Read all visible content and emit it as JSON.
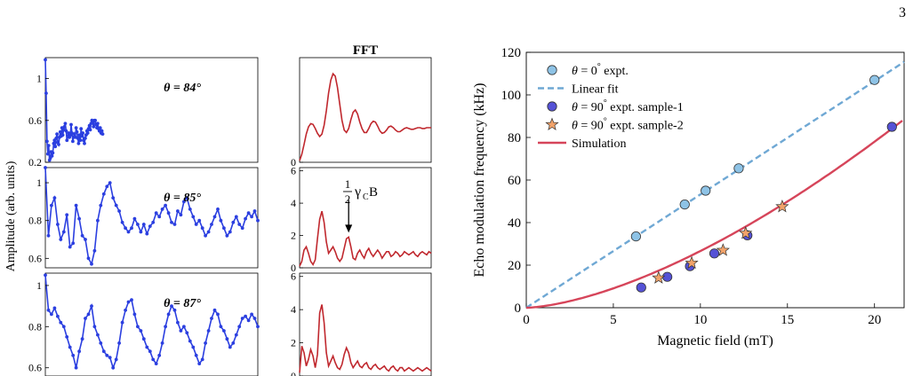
{
  "page_number": "3",
  "chart_data": [
    {
      "type": "line",
      "panel": "left",
      "ylabel": "Amplitude (arb. units)",
      "subplots": [
        {
          "label": "θ = 84°",
          "ylim": [
            0.2,
            1.2
          ],
          "yticks": [
            "0.2",
            "0.6",
            "1"
          ],
          "ytick_values": [
            0.2,
            0.6,
            1.0
          ],
          "series_color": "#2b3fe0",
          "x": [
            0,
            1,
            2,
            3,
            4,
            5,
            6,
            7,
            8,
            9,
            10,
            11,
            12,
            13,
            14,
            15,
            16,
            17,
            18,
            19,
            20,
            21,
            22,
            23,
            24,
            25,
            26,
            27,
            28,
            29,
            30,
            31,
            32,
            33,
            34,
            35,
            36,
            37,
            38,
            39,
            40,
            41,
            42,
            43,
            44,
            45,
            46,
            47,
            48,
            49,
            50,
            51,
            52,
            53,
            54,
            55,
            56,
            57,
            58,
            59,
            60,
            61,
            62,
            63,
            64,
            65,
            66,
            67,
            68,
            69
          ],
          "y": [
            1.18,
            0.86,
            0.4,
            0.28,
            0.36,
            0.22,
            0.24,
            0.3,
            0.26,
            0.29,
            0.38,
            0.41,
            0.35,
            0.43,
            0.47,
            0.39,
            0.37,
            0.44,
            0.49,
            0.45,
            0.53,
            0.46,
            0.51,
            0.54,
            0.57,
            0.5,
            0.41,
            0.45,
            0.48,
            0.44,
            0.46,
            0.56,
            0.48,
            0.4,
            0.44,
            0.47,
            0.44,
            0.53,
            0.49,
            0.43,
            0.38,
            0.46,
            0.41,
            0.52,
            0.45,
            0.48,
            0.41,
            0.38,
            0.43,
            0.46,
            0.5,
            0.48,
            0.52,
            0.55,
            0.51,
            0.57,
            0.6,
            0.58,
            0.54,
            0.6,
            0.6,
            0.56,
            0.53,
            0.57,
            0.52,
            0.5,
            0.53,
            0.48,
            0.5,
            0.47
          ]
        },
        {
          "label": "θ = 85°",
          "ylim": [
            0.55,
            1.08
          ],
          "yticks": [
            "0.6",
            "0.8",
            "1"
          ],
          "ytick_values": [
            0.6,
            0.8,
            1.0
          ],
          "series_color": "#2b3fe0",
          "x": [
            0,
            1,
            2,
            3,
            4,
            5,
            6,
            7,
            8,
            9,
            10,
            11,
            12,
            13,
            14,
            15,
            16,
            17,
            18,
            19,
            20,
            21,
            22,
            23,
            24,
            25,
            26,
            27,
            28,
            29,
            30,
            31,
            32,
            33,
            34,
            35,
            36,
            37,
            38,
            39,
            40,
            41,
            42,
            43,
            44,
            45,
            46,
            47,
            48,
            49,
            50,
            51,
            52,
            53,
            54,
            55,
            56,
            57,
            58,
            59,
            60,
            61,
            62,
            63,
            64,
            65,
            66,
            67,
            68,
            69
          ],
          "y": [
            1.08,
            0.72,
            0.88,
            0.92,
            0.78,
            0.7,
            0.74,
            0.83,
            0.66,
            0.68,
            0.88,
            0.81,
            0.72,
            0.7,
            0.6,
            0.57,
            0.64,
            0.8,
            0.88,
            0.94,
            0.98,
            1.0,
            0.92,
            0.88,
            0.85,
            0.79,
            0.76,
            0.74,
            0.76,
            0.81,
            0.78,
            0.74,
            0.78,
            0.73,
            0.77,
            0.79,
            0.84,
            0.82,
            0.86,
            0.88,
            0.84,
            0.79,
            0.78,
            0.85,
            0.83,
            0.9,
            0.92,
            0.86,
            0.82,
            0.78,
            0.8,
            0.76,
            0.72,
            0.74,
            0.78,
            0.82,
            0.86,
            0.8,
            0.76,
            0.72,
            0.74,
            0.79,
            0.82,
            0.78,
            0.76,
            0.81,
            0.84,
            0.82,
            0.85,
            0.8
          ]
        },
        {
          "label": "θ = 87°",
          "ylim": [
            0.56,
            1.06
          ],
          "yticks": [
            "0.6",
            "0.8",
            "1"
          ],
          "ytick_values": [
            0.6,
            0.8,
            1.0
          ],
          "series_color": "#2b3fe0",
          "x": [
            0,
            1,
            2,
            3,
            4,
            5,
            6,
            7,
            8,
            9,
            10,
            11,
            12,
            13,
            14,
            15,
            16,
            17,
            18,
            19,
            20,
            21,
            22,
            23,
            24,
            25,
            26,
            27,
            28,
            29,
            30,
            31,
            32,
            33,
            34,
            35,
            36,
            37,
            38,
            39,
            40,
            41,
            42,
            43,
            44,
            45,
            46,
            47,
            48,
            49,
            50,
            51,
            52,
            53,
            54,
            55,
            56,
            57,
            58,
            59,
            60,
            61,
            62,
            63,
            64,
            65,
            66,
            67,
            68,
            69
          ],
          "y": [
            1.05,
            0.88,
            0.86,
            0.89,
            0.85,
            0.82,
            0.8,
            0.75,
            0.7,
            0.66,
            0.6,
            0.68,
            0.74,
            0.84,
            0.86,
            0.9,
            0.8,
            0.76,
            0.72,
            0.68,
            0.66,
            0.65,
            0.6,
            0.64,
            0.72,
            0.82,
            0.88,
            0.92,
            0.93,
            0.86,
            0.8,
            0.78,
            0.74,
            0.7,
            0.68,
            0.64,
            0.62,
            0.66,
            0.72,
            0.8,
            0.86,
            0.9,
            0.88,
            0.82,
            0.78,
            0.8,
            0.77,
            0.73,
            0.7,
            0.66,
            0.62,
            0.64,
            0.72,
            0.78,
            0.84,
            0.88,
            0.86,
            0.8,
            0.78,
            0.74,
            0.7,
            0.72,
            0.76,
            0.8,
            0.84,
            0.85,
            0.83,
            0.86,
            0.84,
            0.8
          ]
        }
      ]
    },
    {
      "type": "line",
      "panel": "fft",
      "title": "FFT",
      "annotation_fraction": "1 / 2",
      "annotation_symbol": "γ",
      "annotation_sub": "C",
      "annotation_tail": "B",
      "subplots": [
        {
          "ylim": [
            0,
            1.3
          ],
          "yticks": [
            "0"
          ],
          "ytick_values": [
            0
          ],
          "series_color": "#c0282e",
          "x": [
            0,
            1,
            2,
            3,
            4,
            5,
            6,
            7,
            8,
            9,
            10,
            11,
            12,
            13,
            14,
            15,
            16,
            17,
            18,
            19,
            20,
            21,
            22,
            23,
            24,
            25,
            26,
            27,
            28,
            29,
            30,
            31,
            32,
            33,
            34,
            35,
            36,
            37,
            38,
            39,
            40,
            41,
            42,
            43,
            44,
            45,
            46,
            47,
            48,
            49,
            50,
            51,
            52,
            53,
            54,
            55,
            56,
            57,
            58,
            59
          ],
          "y": [
            0.02,
            0.1,
            0.22,
            0.35,
            0.44,
            0.48,
            0.47,
            0.42,
            0.36,
            0.32,
            0.35,
            0.46,
            0.64,
            0.86,
            1.02,
            1.1,
            1.07,
            0.93,
            0.72,
            0.52,
            0.4,
            0.37,
            0.42,
            0.53,
            0.62,
            0.65,
            0.6,
            0.5,
            0.42,
            0.37,
            0.37,
            0.42,
            0.48,
            0.51,
            0.5,
            0.45,
            0.39,
            0.36,
            0.37,
            0.4,
            0.44,
            0.45,
            0.43,
            0.4,
            0.38,
            0.38,
            0.4,
            0.42,
            0.43,
            0.42,
            0.41,
            0.41,
            0.42,
            0.43,
            0.43,
            0.42,
            0.42,
            0.43,
            0.43,
            0.43
          ]
        },
        {
          "ylim": [
            0,
            6.2
          ],
          "yticks": [
            "0",
            "2",
            "4",
            "6"
          ],
          "ytick_values": [
            0,
            2,
            4,
            6
          ],
          "series_color": "#c0282e",
          "x": [
            0,
            1,
            2,
            3,
            4,
            5,
            6,
            7,
            8,
            9,
            10,
            11,
            12,
            13,
            14,
            15,
            16,
            17,
            18,
            19,
            20,
            21,
            22,
            23,
            24,
            25,
            26,
            27,
            28,
            29,
            30,
            31,
            32,
            33,
            34,
            35,
            36,
            37,
            38,
            39,
            40,
            41,
            42,
            43,
            44,
            45,
            46,
            47,
            48,
            49,
            50,
            51,
            52,
            53,
            54,
            55,
            56,
            57,
            58,
            59
          ],
          "y": [
            0.1,
            0.4,
            1.1,
            1.3,
            0.9,
            0.4,
            0.2,
            0.5,
            1.8,
            3.0,
            3.5,
            2.8,
            1.6,
            0.9,
            1.1,
            1.3,
            1.0,
            0.6,
            0.4,
            0.6,
            1.2,
            1.8,
            1.9,
            1.3,
            0.6,
            0.5,
            0.9,
            1.1,
            0.8,
            0.6,
            1.0,
            1.2,
            0.9,
            0.7,
            0.9,
            1.1,
            0.9,
            0.6,
            0.8,
            1.0,
            1.0,
            0.7,
            0.8,
            1.0,
            0.9,
            0.7,
            0.8,
            1.0,
            0.9,
            0.8,
            0.9,
            1.0,
            0.8,
            0.7,
            0.9,
            1.0,
            0.9,
            0.8,
            1.0,
            0.9
          ]
        },
        {
          "ylim": [
            0,
            6.2
          ],
          "yticks": [
            "0",
            "2",
            "4",
            "6"
          ],
          "ytick_values": [
            0,
            2,
            4,
            6
          ],
          "series_color": "#c0282e",
          "x": [
            0,
            1,
            2,
            3,
            4,
            5,
            6,
            7,
            8,
            9,
            10,
            11,
            12,
            13,
            14,
            15,
            16,
            17,
            18,
            19,
            20,
            21,
            22,
            23,
            24,
            25,
            26,
            27,
            28,
            29,
            30,
            31,
            32,
            33,
            34,
            35,
            36,
            37,
            38,
            39,
            40,
            41,
            42,
            43,
            44,
            45,
            46,
            47,
            48,
            49,
            50,
            51,
            52,
            53,
            54,
            55,
            56,
            57,
            58,
            59
          ],
          "y": [
            0.2,
            1.8,
            1.4,
            0.6,
            1.0,
            1.6,
            1.2,
            0.5,
            1.3,
            3.8,
            4.3,
            3.2,
            1.4,
            0.6,
            0.9,
            1.2,
            0.8,
            0.5,
            0.4,
            0.7,
            1.3,
            1.7,
            1.4,
            0.8,
            0.5,
            0.7,
            0.9,
            0.6,
            0.5,
            0.7,
            0.8,
            0.5,
            0.4,
            0.6,
            0.7,
            0.5,
            0.4,
            0.5,
            0.6,
            0.4,
            0.3,
            0.5,
            0.6,
            0.4,
            0.3,
            0.5,
            0.5,
            0.3,
            0.4,
            0.5,
            0.4,
            0.3,
            0.4,
            0.5,
            0.4,
            0.3,
            0.4,
            0.5,
            0.4,
            0.3
          ]
        }
      ]
    },
    {
      "type": "scatter",
      "panel": "right",
      "xlabel": "Magnetic field (mT)",
      "ylabel": "Echo modulation frequency (kHz)",
      "xlim": [
        0,
        21.7
      ],
      "ylim": [
        0,
        120
      ],
      "xticks": [
        0,
        5,
        10,
        15,
        20
      ],
      "yticks": [
        0,
        20,
        40,
        60,
        80,
        100,
        120
      ],
      "legend_position": "top-left",
      "series": [
        {
          "name": "θ = 0° expt.",
          "legend_symbol": "θ",
          "legend_eq": "= 0",
          "legend_deg": "°",
          "legend_tail": " expt.",
          "marker": "circle",
          "color": "#8ec3e6",
          "x": [
            6.3,
            9.1,
            10.3,
            12.2,
            20.0
          ],
          "y": [
            33.5,
            48.5,
            55,
            65.5,
            107
          ]
        },
        {
          "name": "Linear fit",
          "marker": "dashed-line",
          "color": "#6fa8d4",
          "x": [
            0,
            21.7
          ],
          "y": [
            0,
            115.5
          ]
        },
        {
          "name": "θ = 90° expt. sample-1",
          "legend_symbol": "θ",
          "legend_eq": "= 90",
          "legend_deg": "°",
          "legend_tail": " expt. sample-1",
          "marker": "circle",
          "color": "#5552d6",
          "x": [
            6.6,
            8.1,
            9.4,
            10.8,
            12.7,
            21.0
          ],
          "y": [
            9.5,
            14.5,
            19.5,
            25.5,
            34,
            85
          ]
        },
        {
          "name": "θ = 90° expt. sample-2",
          "legend_symbol": "θ",
          "legend_eq": "= 90",
          "legend_deg": "°",
          "legend_tail": " expt. sample-2",
          "marker": "star",
          "color": "#f2a36a",
          "x": [
            7.6,
            9.5,
            11.3,
            12.6,
            14.7
          ],
          "y": [
            14,
            21,
            27,
            35,
            47.5
          ]
        },
        {
          "name": "Simulation",
          "marker": "solid-line",
          "color": "#d6455a",
          "x": [
            0,
            2,
            4,
            6,
            8,
            10,
            12,
            14,
            16,
            18,
            20,
            21.7
          ],
          "y": [
            0,
            0.9,
            3.6,
            8.0,
            14.0,
            21.4,
            30.0,
            39.6,
            50.0,
            61.4,
            73.5,
            88.5
          ]
        }
      ]
    }
  ]
}
